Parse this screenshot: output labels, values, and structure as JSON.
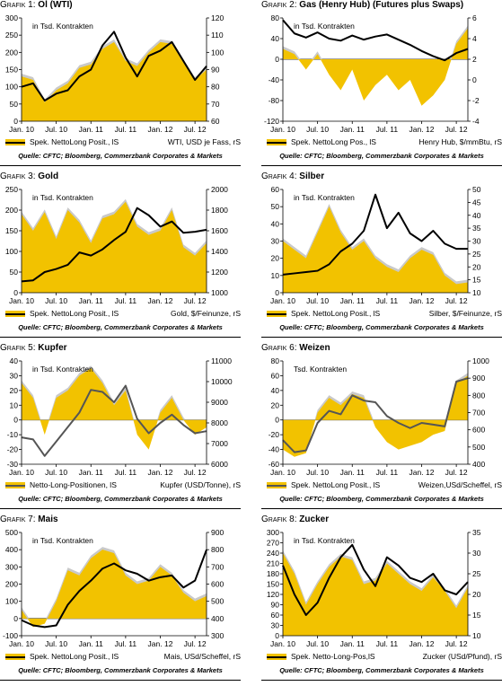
{
  "colors": {
    "fill": "#f2c200",
    "fill_shadow": "#c9c9c9"
  },
  "panels": [
    {
      "num": "Grafik 1:",
      "name": "Öl (WTI)",
      "inner_label": "in Tsd. Kontrakten",
      "legend_fill": "Spek. NettoLong Posit., lS",
      "legend_line": "WTI, USD je Fass, rS",
      "line_color": "#000000",
      "source": "Quelle: CFTC; Bloomberg, Commerzbank Corporates & Markets",
      "xticks": [
        "Jan. 10",
        "Jul. 10",
        "Jan. 11",
        "Jul. 11",
        "Jan. 12",
        "Jul. 12"
      ]
    },
    {
      "num": "Grafik 2:",
      "name": "Gas (Henry Hub) (Futures plus Swaps)",
      "inner_label": "in Tsd. Kontrakten",
      "legend_fill": "Spek. NettoLong Pos., lS",
      "legend_line": "Henry Hub, $/mmBtu, rS",
      "line_color": "#000000",
      "source": "Quelle: CFTC; Bloomberg, Commerzbank Corporates & Markets",
      "xticks": [
        "Jan. 10",
        "Jul. 10",
        "Jan. 11",
        "Jul. 11",
        "Jan. 12",
        "Jul. 12"
      ]
    },
    {
      "num": "Grafik 3:",
      "name": "Gold",
      "inner_label": "in Tsd. Kontrakten",
      "legend_fill": "Spek. NettoLong Posit., lS",
      "legend_line": "Gold, $/Feinunze, rS",
      "line_color": "#000000",
      "source": "Quelle: CFTC; Bloomberg, Commerzbank Corporates & Markets",
      "xticks": [
        "Jan. 10",
        "Jul. 10",
        "Jan. 11",
        "Jul. 11",
        "Jan. 12",
        "Jul. 12"
      ]
    },
    {
      "num": "Grafik 4:",
      "name": "Silber",
      "inner_label": "in Tsd. Kontrakten",
      "legend_fill": "Spek. NettoLong Posit., lS",
      "legend_line": "Silber, $/Feinunze, rS",
      "line_color": "#000000",
      "source": "Quelle: CFTC; Bloomberg, Commerzbank Corporates & Markets",
      "xticks": [
        "Jan. 10",
        "Jul. 10",
        "Jan. 11",
        "Jul. 11",
        "Jan. 12",
        "Jul. 12"
      ]
    },
    {
      "num": "Grafik 5:",
      "name": "Kupfer",
      "inner_label": "in Tsd. Kontrakten",
      "legend_fill": "Netto-Long-Positionen, lS",
      "legend_line": "Kupfer (USD/Tonne), rS",
      "line_color": "#555555",
      "source": "Quelle: CFTC; Bloomberg, Commerzbank Corporates & Markets",
      "xticks": [
        "Jan. 10",
        "Jul. 10",
        "Jan. 11",
        "Jul. 11",
        "Jan. 12",
        "Jul. 12"
      ]
    },
    {
      "num": "Grafik 6:",
      "name": "Weizen",
      "inner_label": "Tsd. Kontrakten",
      "legend_fill": "Spek. NettoLong Posit., lS",
      "legend_line": "Weizen,USd/Scheffel, rS",
      "line_color": "#555555",
      "source": "Quelle: CFTC; Bloomberg, Commerzbank Corporates & Markets",
      "xticks": [
        "Jan. 10",
        "Jul. 10",
        "Jan. 11",
        "Jul. 11",
        "Jan. 12",
        "Jul. 12"
      ]
    },
    {
      "num": "Grafik 7:",
      "name": "Mais",
      "inner_label": "in Tsd. Kontrakten",
      "legend_fill": "Spek. NettoLong Posit., lS",
      "legend_line": "Mais, USd/Scheffel, rS",
      "line_color": "#000000",
      "source": "Quelle: CFTC; Bloomberg, Commerzbank Corporates & Markets",
      "xticks": [
        "Jan. 10",
        "Jul. 10",
        "Jan. 11",
        "Jul. 11",
        "Jan. 12",
        "Jul. 12"
      ]
    },
    {
      "num": "Grafik 8:",
      "name": "Zucker",
      "inner_label": "in Tsd. Kontrakten",
      "legend_fill": "Spek. Netto-Long-Pos,lS",
      "legend_line": "Zucker (USd/Pfund), rS",
      "line_color": "#000000",
      "source": "Quelle: CFTC; Bloomberg, Commerzbank Corporates & Markets",
      "xticks": [
        "Jan. 10",
        "Jul. 10",
        "Jan. 11",
        "Jul. 11",
        "Jan. 12",
        "Jul. 12"
      ]
    }
  ],
  "chart_data": [
    {
      "type": "area",
      "title": "Öl (WTI)",
      "x": [
        "Jan. 10",
        "Mar. 10",
        "May 10",
        "Jul. 10",
        "Sep. 10",
        "Nov. 10",
        "Jan. 11",
        "Mar. 11",
        "May 11",
        "Jul. 11",
        "Sep. 11",
        "Nov. 11",
        "Jan. 12",
        "Mar. 12",
        "May 12",
        "Jul. 12",
        "Aug. 12"
      ],
      "ylim_left": [
        0,
        300
      ],
      "yticks_left": [
        0,
        50,
        100,
        150,
        200,
        250,
        300
      ],
      "ylim_right": [
        60,
        120
      ],
      "yticks_right": [
        60,
        70,
        80,
        90,
        100,
        110,
        120
      ],
      "series": [
        {
          "name": "Spek. NettoLong Posit., lS",
          "axis": "left",
          "values": [
            130,
            120,
            55,
            90,
            110,
            155,
            165,
            210,
            230,
            175,
            160,
            200,
            230,
            225,
            170,
            120,
            150
          ]
        },
        {
          "name": "WTI, USD je Fass, rS",
          "axis": "right",
          "values": [
            80,
            82,
            72,
            76,
            78,
            86,
            90,
            104,
            112,
            97,
            86,
            98,
            101,
            106,
            95,
            84,
            92
          ]
        }
      ]
    },
    {
      "type": "area",
      "title": "Gas (Henry Hub) (Futures plus Swaps)",
      "x": [
        "Jan. 10",
        "Mar. 10",
        "May 10",
        "Jul. 10",
        "Sep. 10",
        "Nov. 10",
        "Jan. 11",
        "Mar. 11",
        "May 11",
        "Jul. 11",
        "Sep. 11",
        "Nov. 11",
        "Jan. 12",
        "Mar. 12",
        "May 12",
        "Jul. 12",
        "Aug. 12"
      ],
      "ylim_left": [
        -120,
        80
      ],
      "yticks_left": [
        -120,
        -80,
        -40,
        0,
        40,
        80
      ],
      "ylim_right": [
        -4,
        6
      ],
      "yticks_right": [
        -4,
        -2,
        0,
        2,
        4,
        6
      ],
      "series": [
        {
          "name": "Spek. NettoLong Pos., lS",
          "axis": "left",
          "values": [
            20,
            10,
            -20,
            10,
            -30,
            -60,
            -20,
            -80,
            -50,
            -30,
            -60,
            -40,
            -90,
            -70,
            -40,
            30,
            60
          ]
        },
        {
          "name": "Henry Hub, $/mmBtu, rS",
          "axis": "right",
          "values": [
            5.8,
            4.5,
            4.1,
            4.6,
            4.0,
            3.8,
            4.3,
            3.9,
            4.2,
            4.4,
            3.9,
            3.4,
            2.8,
            2.3,
            1.9,
            2.6,
            3.0
          ]
        }
      ]
    },
    {
      "type": "area",
      "title": "Gold",
      "x": [
        "Jan. 10",
        "Mar. 10",
        "May 10",
        "Jul. 10",
        "Sep. 10",
        "Nov. 10",
        "Jan. 11",
        "Mar. 11",
        "May 11",
        "Jul. 11",
        "Sep. 11",
        "Nov. 11",
        "Jan. 12",
        "Mar. 12",
        "May 12",
        "Jul. 12",
        "Aug. 12"
      ],
      "ylim_left": [
        0,
        250
      ],
      "yticks_left": [
        0,
        50,
        100,
        150,
        200,
        250
      ],
      "ylim_right": [
        1000,
        2000
      ],
      "yticks_right": [
        1000,
        1200,
        1400,
        1600,
        1800,
        2000
      ],
      "series": [
        {
          "name": "Spek. NettoLong Posit., lS",
          "axis": "left",
          "values": [
            190,
            150,
            195,
            130,
            200,
            170,
            120,
            180,
            190,
            220,
            160,
            140,
            150,
            200,
            110,
            90,
            120
          ]
        },
        {
          "name": "Gold, $/Feinunze, rS",
          "axis": "right",
          "values": [
            1110,
            1120,
            1200,
            1230,
            1270,
            1390,
            1360,
            1420,
            1510,
            1590,
            1820,
            1750,
            1640,
            1690,
            1580,
            1590,
            1610
          ]
        }
      ]
    },
    {
      "type": "area",
      "title": "Silber",
      "x": [
        "Jan. 10",
        "Mar. 10",
        "May 10",
        "Jul. 10",
        "Sep. 10",
        "Nov. 10",
        "Jan. 11",
        "Mar. 11",
        "May 11",
        "Jul. 11",
        "Sep. 11",
        "Nov. 11",
        "Jan. 12",
        "Mar. 12",
        "May 12",
        "Jul. 12",
        "Aug. 12"
      ],
      "ylim_left": [
        0,
        60
      ],
      "yticks_left": [
        0,
        10,
        20,
        30,
        40,
        50,
        60
      ],
      "ylim_right": [
        10,
        50
      ],
      "yticks_right": [
        10,
        15,
        20,
        25,
        30,
        35,
        40,
        45,
        50
      ],
      "series": [
        {
          "name": "Spek. NettoLong Posit., lS",
          "axis": "left",
          "values": [
            30,
            25,
            20,
            35,
            50,
            35,
            25,
            30,
            20,
            15,
            12,
            20,
            25,
            22,
            10,
            5,
            6
          ]
        },
        {
          "name": "Silber, $/Feinunze, rS",
          "axis": "right",
          "values": [
            17,
            17.5,
            18,
            18.5,
            21,
            26,
            29,
            34,
            48,
            35,
            41,
            33,
            30,
            34,
            29,
            27,
            27
          ]
        }
      ]
    },
    {
      "type": "area",
      "title": "Kupfer",
      "x": [
        "Jan. 10",
        "Mar. 10",
        "May 10",
        "Jul. 10",
        "Sep. 10",
        "Nov. 10",
        "Jan. 11",
        "Mar. 11",
        "May 11",
        "Jul. 11",
        "Sep. 11",
        "Nov. 11",
        "Jan. 12",
        "Mar. 12",
        "May 12",
        "Jul. 12",
        "Aug. 12"
      ],
      "ylim_left": [
        -30,
        40
      ],
      "yticks_left": [
        -30,
        -20,
        -10,
        0,
        10,
        20,
        30,
        40
      ],
      "ylim_right": [
        6000,
        11000
      ],
      "yticks_right": [
        6000,
        7000,
        8000,
        9000,
        10000,
        11000
      ],
      "series": [
        {
          "name": "Netto-Long-Positionen, lS",
          "axis": "left",
          "values": [
            25,
            15,
            -10,
            15,
            20,
            30,
            35,
            25,
            10,
            20,
            -10,
            -20,
            5,
            15,
            0,
            -10,
            -5
          ]
        },
        {
          "name": "Kupfer (USD/Tonne), rS",
          "axis": "right",
          "values": [
            7300,
            7200,
            6400,
            7100,
            7800,
            8500,
            9600,
            9500,
            9000,
            9800,
            8200,
            7500,
            8000,
            8400,
            7900,
            7500,
            7600
          ]
        }
      ]
    },
    {
      "type": "area",
      "title": "Weizen",
      "x": [
        "Jan. 10",
        "Mar. 10",
        "May 10",
        "Jul. 10",
        "Sep. 10",
        "Nov. 10",
        "Jan. 11",
        "Mar. 11",
        "May 11",
        "Jul. 11",
        "Sep. 11",
        "Nov. 11",
        "Jan. 12",
        "Mar. 12",
        "May 12",
        "Jul. 12",
        "Aug. 12"
      ],
      "ylim_left": [
        -60,
        80
      ],
      "yticks_left": [
        -60,
        -40,
        -20,
        0,
        20,
        40,
        60,
        80
      ],
      "ylim_right": [
        400,
        1000
      ],
      "yticks_right": [
        400,
        500,
        600,
        700,
        800,
        900,
        1000
      ],
      "series": [
        {
          "name": "Spek. NettoLong Posit., lS",
          "axis": "left",
          "values": [
            -40,
            -50,
            -45,
            10,
            30,
            20,
            35,
            30,
            -10,
            -30,
            -40,
            -35,
            -30,
            -20,
            -15,
            50,
            60
          ]
        },
        {
          "name": "Weizen,USd/Scheffel, rS",
          "axis": "right",
          "values": [
            540,
            470,
            480,
            640,
            710,
            690,
            800,
            770,
            760,
            680,
            640,
            610,
            640,
            630,
            620,
            880,
            900
          ]
        }
      ]
    },
    {
      "type": "area",
      "title": "Mais",
      "x": [
        "Jan. 10",
        "Mar. 10",
        "May 10",
        "Jul. 10",
        "Sep. 10",
        "Nov. 10",
        "Jan. 11",
        "Mar. 11",
        "May 11",
        "Jul. 11",
        "Sep. 11",
        "Nov. 11",
        "Jan. 12",
        "Mar. 12",
        "May 12",
        "Jul. 12",
        "Aug. 12"
      ],
      "ylim_left": [
        -100,
        500
      ],
      "yticks_left": [
        -100,
        0,
        100,
        200,
        300,
        400,
        500
      ],
      "ylim_right": [
        300,
        900
      ],
      "yticks_right": [
        300,
        400,
        500,
        600,
        700,
        800,
        900
      ],
      "series": [
        {
          "name": "Spek. NettoLong Posit., lS",
          "axis": "left",
          "values": [
            50,
            -50,
            -30,
            100,
            280,
            250,
            350,
            400,
            380,
            250,
            200,
            220,
            300,
            250,
            150,
            100,
            130
          ]
        },
        {
          "name": "Mais, USd/Scheffel, rS",
          "axis": "right",
          "values": [
            390,
            360,
            350,
            360,
            480,
            560,
            620,
            690,
            720,
            680,
            660,
            620,
            640,
            650,
            580,
            620,
            800
          ]
        }
      ]
    },
    {
      "type": "area",
      "title": "Zucker",
      "x": [
        "Jan. 10",
        "Mar. 10",
        "May 10",
        "Jul. 10",
        "Sep. 10",
        "Nov. 10",
        "Jan. 11",
        "Mar. 11",
        "May 11",
        "Jul. 11",
        "Sep. 11",
        "Nov. 11",
        "Jan. 12",
        "Mar. 12",
        "May 12",
        "Jul. 12",
        "Aug. 12"
      ],
      "ylim_left": [
        0,
        300
      ],
      "yticks_left": [
        0,
        30,
        60,
        90,
        120,
        150,
        180,
        210,
        240,
        270,
        300
      ],
      "ylim_right": [
        10,
        35
      ],
      "yticks_right": [
        10,
        15,
        20,
        25,
        30,
        35
      ],
      "series": [
        {
          "name": "Spek. Netto-Long-Pos,lS",
          "axis": "left",
          "values": [
            240,
            180,
            90,
            150,
            200,
            230,
            220,
            150,
            160,
            210,
            180,
            150,
            130,
            170,
            130,
            80,
            140
          ]
        },
        {
          "name": "Zucker (USd/Pfund), rS",
          "axis": "right",
          "values": [
            27,
            20,
            15,
            18,
            24,
            29,
            32,
            26,
            22,
            29,
            27,
            24,
            23,
            25,
            21,
            20,
            23
          ]
        }
      ]
    }
  ]
}
